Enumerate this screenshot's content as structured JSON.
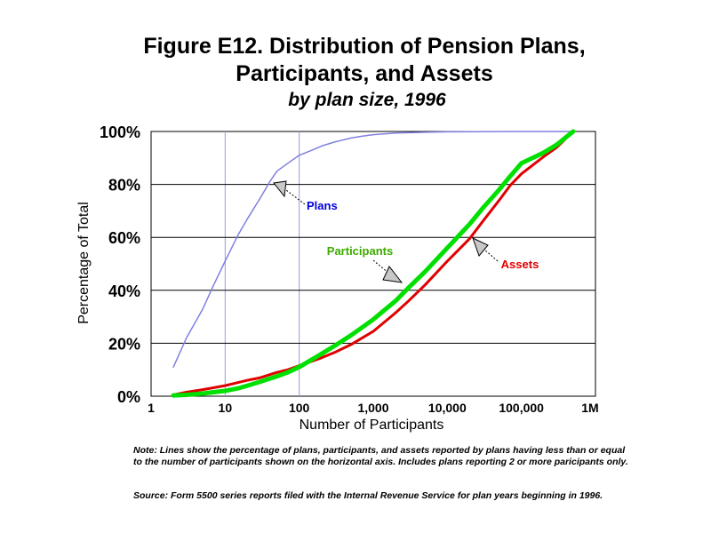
{
  "title_line1": "Figure E12.  Distribution of Pension Plans,",
  "title_line2": "Participants, and Assets",
  "subtitle": "by plan size, 1996",
  "note": "Note: Lines show the percentage of plans, participants, and assets reported by plans having less than or equal to the number of participants shown on the horizontal axis.  Includes plans reporting 2 or more paricipants only.",
  "source": "Source: Form 5500 series reports filed with the Internal Revenue Service for plan years beginning in 1996.",
  "chart_data": {
    "type": "line",
    "xlabel": "Number of Participants",
    "ylabel": "Percentage of Total",
    "x_scale": "log",
    "xlim": [
      1,
      1000000
    ],
    "ylim": [
      0,
      100
    ],
    "x_ticks": [
      1,
      10,
      100,
      1000,
      10000,
      100000,
      1000000
    ],
    "x_tick_labels": [
      "1",
      "10",
      "100",
      "1,000",
      "10,000",
      "100,000",
      "1M"
    ],
    "y_ticks": [
      0,
      20,
      40,
      60,
      80,
      100
    ],
    "y_tick_labels": [
      "0%",
      "20%",
      "40%",
      "60%",
      "80%",
      "100%"
    ],
    "grid": "horizontal lines at 0, 20, 40, 60, 80, 100 and vertical lines at 10 and 100",
    "series": [
      {
        "name": "Plans",
        "color": "#8080e0",
        "x": [
          2,
          3,
          5,
          7,
          10,
          15,
          20,
          30,
          40,
          50,
          70,
          100,
          150,
          200,
          300,
          500,
          700,
          1000,
          2000,
          5000,
          10000,
          50000,
          100000,
          500000
        ],
        "values": [
          11,
          22,
          33,
          42,
          51,
          61,
          67,
          75,
          81,
          85,
          88,
          91,
          93,
          94.5,
          96,
          97.5,
          98.2,
          98.8,
          99.4,
          99.7,
          99.85,
          99.95,
          100,
          100
        ]
      },
      {
        "name": "Participants",
        "color": "#00e000",
        "x": [
          2,
          3,
          5,
          7,
          10,
          15,
          20,
          30,
          50,
          70,
          100,
          200,
          300,
          500,
          1000,
          2000,
          3000,
          5000,
          10000,
          20000,
          30000,
          50000,
          70000,
          100000,
          200000,
          300000,
          500000
        ],
        "values": [
          0.3,
          0.5,
          1,
          1.5,
          2,
          3,
          4,
          5.5,
          7.5,
          9,
          11,
          16,
          19,
          23,
          29,
          36,
          41,
          47,
          56,
          65,
          71,
          78,
          83,
          88,
          92,
          95,
          100
        ]
      },
      {
        "name": "Assets",
        "color": "#e00000",
        "x": [
          2,
          3,
          5,
          10,
          20,
          30,
          50,
          70,
          100,
          200,
          300,
          500,
          1000,
          2000,
          3000,
          5000,
          10000,
          20000,
          30000,
          50000,
          70000,
          100000,
          200000,
          300000,
          500000
        ],
        "values": [
          0.5,
          1.5,
          2.5,
          4,
          6,
          7,
          9,
          10,
          11.5,
          14.5,
          16.5,
          19.5,
          24.5,
          31.5,
          36,
          42,
          51,
          59.5,
          66,
          74,
          79.5,
          84,
          90.5,
          94,
          100
        ]
      }
    ],
    "annotations": [
      {
        "text": "Plans",
        "color": "#0000e0"
      },
      {
        "text": "Participants",
        "color": "#3caa00"
      },
      {
        "text": "Assets",
        "color": "#e00000"
      }
    ]
  }
}
